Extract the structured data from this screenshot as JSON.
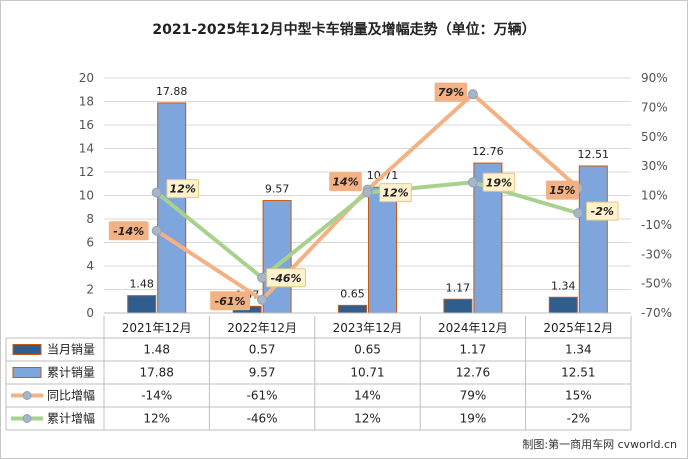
{
  "chart_data": {
    "type": "bar",
    "title": "2021-2025年12月中型卡车销量及增幅走势（单位：万辆）",
    "categories": [
      "2021年12月",
      "2022年12月",
      "2023年12月",
      "2024年12月",
      "2025年12月"
    ],
    "y_left": {
      "range": [
        0,
        20
      ],
      "ticks": [
        "0",
        "2",
        "4",
        "6",
        "8",
        "10",
        "12",
        "14",
        "16",
        "18",
        "20"
      ]
    },
    "y_right": {
      "range": [
        -70,
        90
      ],
      "ticks": [
        "-70%",
        "-50%",
        "-30%",
        "-10%",
        "10%",
        "30%",
        "50%",
        "70%",
        "90%"
      ]
    },
    "grid": true,
    "series": [
      {
        "name": "当月销量",
        "type": "bar",
        "axis": "left",
        "color": "#2e5d8e",
        "values": [
          1.48,
          0.57,
          0.65,
          1.17,
          1.34
        ],
        "labels": [
          "1.48",
          "0.57",
          "0.65",
          "1.17",
          "1.34"
        ]
      },
      {
        "name": "累计销量",
        "type": "bar",
        "axis": "left",
        "color": "#7fa6dc",
        "values": [
          17.88,
          9.57,
          10.71,
          12.76,
          12.51
        ],
        "labels": [
          "17.88",
          "9.57",
          "10.71",
          "12.76",
          "12.51"
        ]
      },
      {
        "name": "同比增幅",
        "type": "line",
        "axis": "right",
        "color": "#f4b183",
        "values": [
          -14,
          -61,
          14,
          79,
          15
        ],
        "labels": [
          "-14%",
          "-61%",
          "14%",
          "79%",
          "15%"
        ]
      },
      {
        "name": "累计增幅",
        "type": "line",
        "axis": "right",
        "color": "#a9d18e",
        "values": [
          12,
          -46,
          12,
          19,
          -2
        ],
        "labels": [
          "12%",
          "-46%",
          "12%",
          "19%",
          "-2%"
        ]
      }
    ],
    "data_table": true
  },
  "colors": {
    "current_bar": "#2e5d8e",
    "cumulative_bar": "#7fa6dc",
    "bar_outline": "#c55a11",
    "yoy_line": "#f4b183",
    "cum_line": "#a9d18e",
    "yoy_label_bg": "#f4b183",
    "cum_label_bg": "#fff2cc",
    "grid": "#d9d9d9"
  },
  "credit": "制图:第一商用车网 cvworld.cn"
}
